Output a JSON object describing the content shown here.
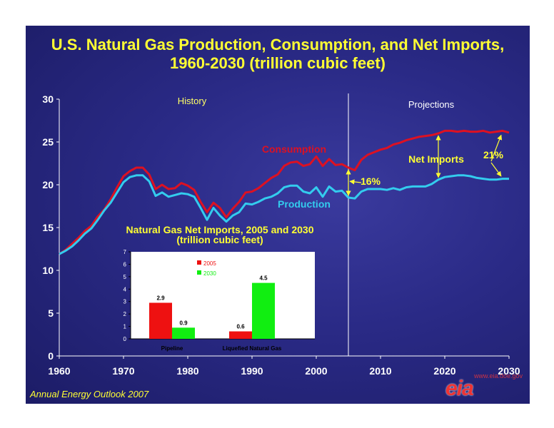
{
  "title": {
    "line1": "U.S. Natural Gas Production, Consumption, and Net Imports,",
    "line2": "1960-2030 (trillion cubic feet)"
  },
  "footer": "Annual Energy Outlook 2007",
  "logo": {
    "mark": "eia",
    "url": "www.eia.doe.gov"
  },
  "colors": {
    "consumption": "#dd1122",
    "production": "#33ccee",
    "text_yellow": "#ffff33",
    "annotation_yellow": "#ffff33",
    "axis_white": "#ffffff",
    "bar_2005": "#ee1111",
    "bar_2030": "#11ee11"
  },
  "chart_data": [
    {
      "type": "line",
      "title": "U.S. Natural Gas Production, Consumption, and Net Imports, 1960-2030 (trillion cubic feet)",
      "x_ticks": [
        1960,
        1970,
        1980,
        1990,
        2000,
        2010,
        2020,
        2030
      ],
      "y_ticks": [
        0,
        5,
        10,
        15,
        20,
        25,
        30
      ],
      "xlim": [
        1960,
        2030
      ],
      "ylim": [
        0,
        30
      ],
      "divider_year": 2005,
      "region_labels": {
        "history": "History",
        "projections": "Projections"
      },
      "x": [
        1960,
        1961,
        1962,
        1963,
        1964,
        1965,
        1966,
        1967,
        1968,
        1969,
        1970,
        1971,
        1972,
        1973,
        1974,
        1975,
        1976,
        1977,
        1978,
        1979,
        1980,
        1981,
        1982,
        1983,
        1984,
        1985,
        1986,
        1987,
        1988,
        1989,
        1990,
        1991,
        1992,
        1993,
        1994,
        1995,
        1996,
        1997,
        1998,
        1999,
        2000,
        2001,
        2002,
        2003,
        2004,
        2005,
        2006,
        2007,
        2008,
        2009,
        2010,
        2011,
        2012,
        2013,
        2014,
        2015,
        2016,
        2017,
        2018,
        2019,
        2020,
        2021,
        2022,
        2023,
        2024,
        2025,
        2026,
        2027,
        2028,
        2029,
        2030
      ],
      "series": [
        {
          "name": "Consumption",
          "values": [
            11.9,
            12.4,
            13.1,
            13.8,
            14.6,
            15.2,
            16.3,
            17.1,
            18.3,
            19.7,
            21.0,
            21.6,
            22.0,
            22.0,
            21.2,
            19.5,
            20.0,
            19.5,
            19.6,
            20.2,
            19.9,
            19.4,
            18.0,
            16.8,
            17.9,
            17.3,
            16.2,
            17.2,
            18.0,
            19.1,
            19.2,
            19.6,
            20.2,
            20.8,
            21.2,
            22.2,
            22.6,
            22.7,
            22.2,
            22.4,
            23.3,
            22.2,
            23.0,
            22.3,
            22.4,
            22.0,
            21.7,
            22.9,
            23.5,
            23.8,
            24.1,
            24.3,
            24.7,
            24.9,
            25.2,
            25.4,
            25.6,
            25.7,
            25.8,
            26.0,
            26.3,
            26.3,
            26.2,
            26.3,
            26.2,
            26.2,
            26.3,
            26.1,
            26.2,
            26.3,
            26.1
          ]
        },
        {
          "name": "Production",
          "values": [
            11.9,
            12.3,
            12.8,
            13.5,
            14.3,
            14.9,
            15.9,
            17.0,
            17.9,
            19.1,
            20.3,
            20.9,
            21.1,
            21.1,
            20.4,
            18.7,
            19.1,
            18.6,
            18.8,
            19.0,
            18.9,
            18.6,
            17.3,
            15.9,
            17.3,
            16.4,
            15.7,
            16.4,
            16.8,
            17.8,
            17.7,
            18.0,
            18.4,
            18.6,
            19.0,
            19.7,
            19.9,
            19.9,
            19.2,
            19.0,
            19.7,
            18.6,
            19.8,
            19.2,
            19.3,
            18.5,
            18.4,
            19.2,
            19.5,
            19.5,
            19.5,
            19.4,
            19.6,
            19.4,
            19.7,
            19.8,
            19.8,
            19.8,
            20.1,
            20.6,
            20.9,
            21.0,
            21.1,
            21.1,
            21.0,
            20.8,
            20.7,
            20.6,
            20.6,
            20.7,
            20.7
          ]
        }
      ],
      "annotations": [
        {
          "text": "Consumption"
        },
        {
          "text": "Production"
        },
        {
          "text": "Net Imports"
        },
        {
          "text": "16%"
        },
        {
          "text": "21%"
        }
      ]
    },
    {
      "type": "bar",
      "title": "Natural Gas Net Imports, 2005 and 2030 (trillion cubic feet)",
      "title_line1": "Natural Gas Net Imports, 2005 and 2030",
      "title_line2": "(trillion cubic feet)",
      "categories": [
        "Pipeline",
        "Liquefied Natural Gas"
      ],
      "series": [
        {
          "name": "2005",
          "values": [
            2.9,
            0.6
          ]
        },
        {
          "name": "2030",
          "values": [
            0.9,
            4.5
          ]
        }
      ],
      "value_labels": [
        [
          "2.9",
          "0.6"
        ],
        [
          "0.9",
          "4.5"
        ]
      ],
      "y_ticks": [
        0,
        1,
        2,
        3,
        4,
        5,
        6,
        7
      ],
      "ylim": [
        0,
        7
      ],
      "legend_position": "top-right"
    }
  ]
}
